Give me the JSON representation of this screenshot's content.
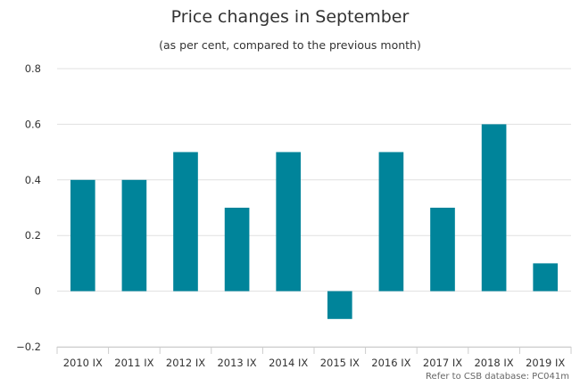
{
  "title": "Price changes in September",
  "subtitle": "(as per cent, compared to the previous month)",
  "credit": "Refer to CSB database: PC041m",
  "colors": {
    "bar": "#00849a",
    "grid": "#e0e0e0",
    "axis": "#cccccc"
  },
  "chart_data": {
    "type": "bar",
    "categories": [
      "2010 IX",
      "2011 IX",
      "2012 IX",
      "2013 IX",
      "2014 IX",
      "2015 IX",
      "2016 IX",
      "2017 IX",
      "2018 IX",
      "2019 IX"
    ],
    "values": [
      0.4,
      0.4,
      0.5,
      0.3,
      0.5,
      -0.1,
      0.5,
      0.3,
      0.6,
      0.1
    ],
    "title": "Price changes in September",
    "subtitle": "(as per cent, compared to the previous month)",
    "ylim": [
      -0.2,
      0.8
    ],
    "yticks": [
      "0.8",
      "0.6",
      "0.4",
      "0.2",
      "0",
      "−0.2"
    ],
    "grid": true,
    "legend": "none"
  }
}
